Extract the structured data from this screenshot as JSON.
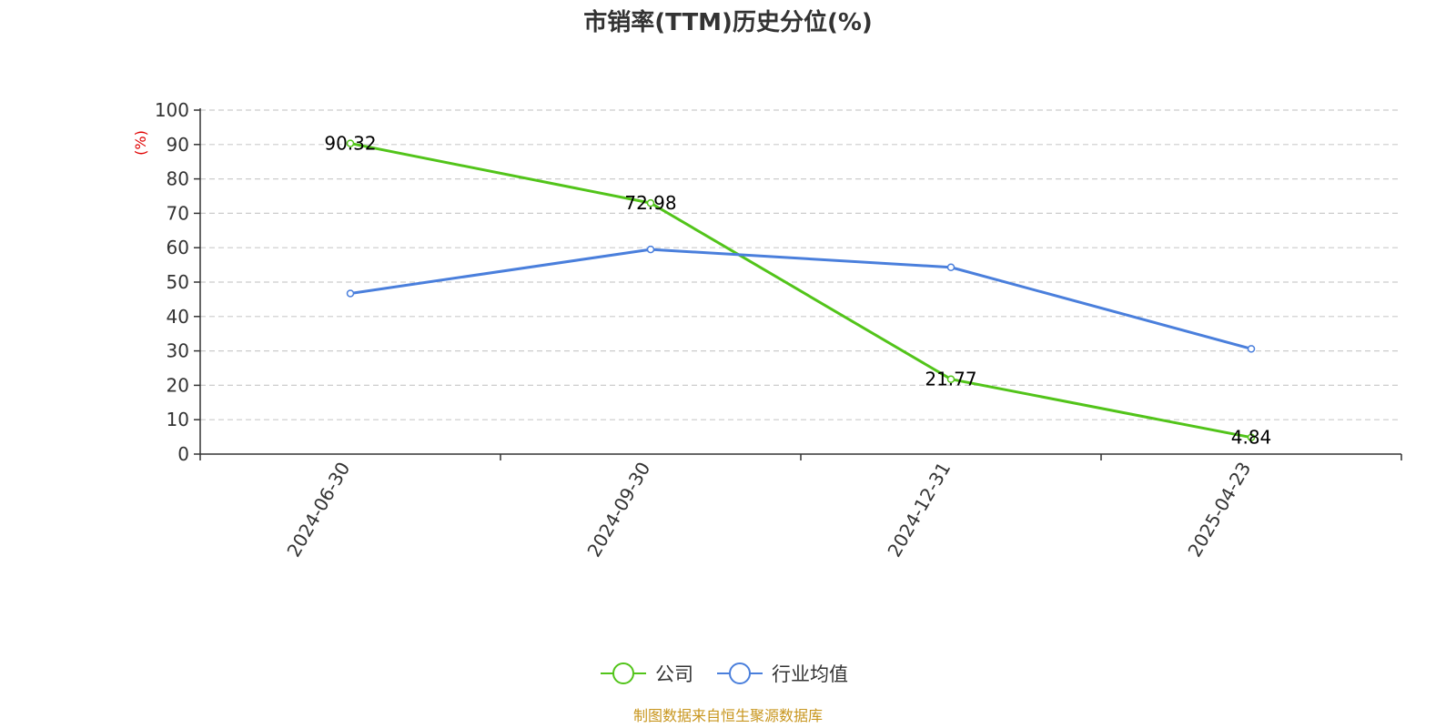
{
  "chart_data": {
    "type": "line",
    "title": "市销率(TTM)历史分位(%)",
    "ylabel": "(%)",
    "categories": [
      "2024-06-30",
      "2024-09-30",
      "2024-12-31",
      "2025-04-23"
    ],
    "ylim": [
      0,
      100
    ],
    "yticks": [
      "0",
      "10",
      "20",
      "30",
      "40",
      "50",
      "60",
      "70",
      "80",
      "90",
      "100"
    ],
    "grid": true,
    "legend_position": "bottom-center",
    "series": [
      {
        "name": "公司",
        "color": "#52c41a",
        "values": [
          90.32,
          72.98,
          21.77,
          4.84
        ],
        "labels": [
          "90.32",
          "72.98",
          "21.77",
          "4.84"
        ]
      },
      {
        "name": "行业均值",
        "color": "#4a7fdc",
        "values": [
          46.7,
          59.5,
          54.3,
          30.6
        ]
      }
    ]
  },
  "source_note": "制图数据来自恒生聚源数据库"
}
